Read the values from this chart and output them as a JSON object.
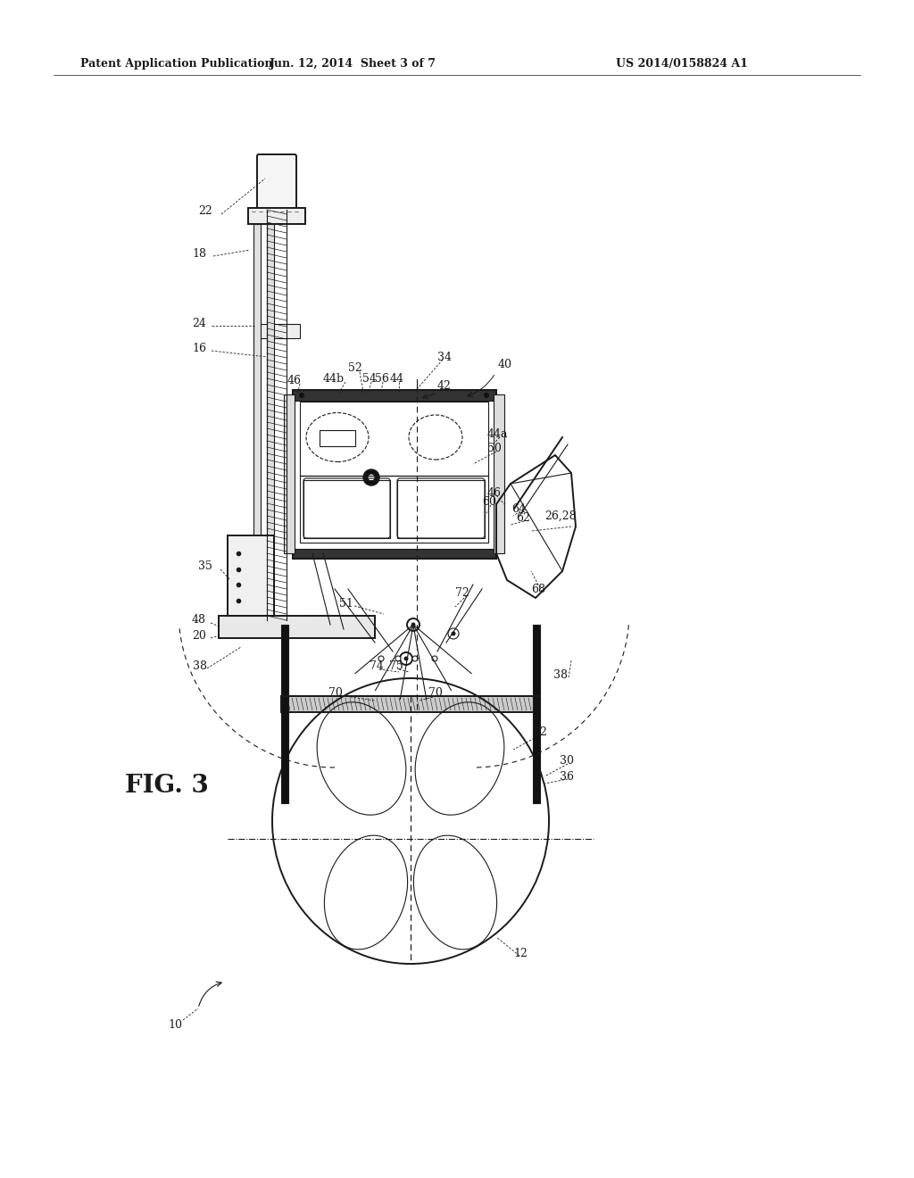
{
  "bg_color": "#ffffff",
  "line_color": "#1a1a1a",
  "header_text1": "Patent Application Publication",
  "header_text2": "Jun. 12, 2014  Sheet 3 of 7",
  "header_text3": "US 2014/0158824 A1",
  "fig_label": "FIG. 3"
}
